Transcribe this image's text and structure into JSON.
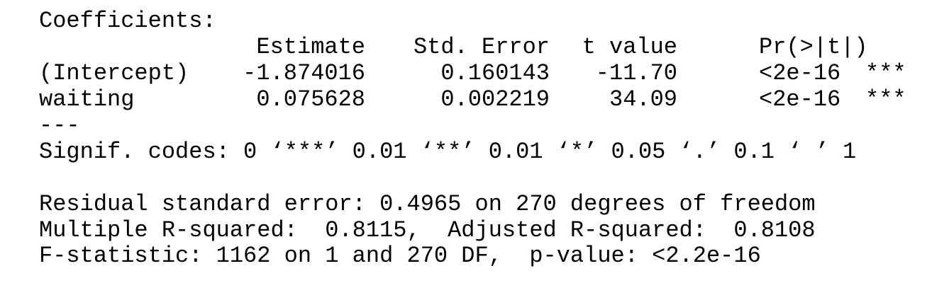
{
  "title": "Coefficients:",
  "table": {
    "columns": [
      "Estimate",
      "Std. Error",
      "t value",
      "Pr(>|t|)"
    ],
    "rows": [
      [
        "(Intercept)",
        "-1.874016",
        "0.160143",
        "-11.70",
        "<2e-16",
        "***"
      ],
      [
        "waiting",
        "0.075628",
        "0.002219",
        "34.09",
        "<2e-16",
        "***"
      ]
    ]
  },
  "separator": "---",
  "signif_codes": "Signif. codes: 0 ‘***’ 0.01 ‘**’ 0.01 ‘*’ 0.05 ‘.’ 0.1 ‘ ’ 1",
  "summary": [
    "Residual standard error: 0.4965 on 270 degrees of freedom",
    "Multiple R-squared:  0.8115,\tAdjusted R-squared:  0.8108",
    "F-statistic: 1162 on 1 and 270 DF,  p-value: <2.2e-16"
  ]
}
